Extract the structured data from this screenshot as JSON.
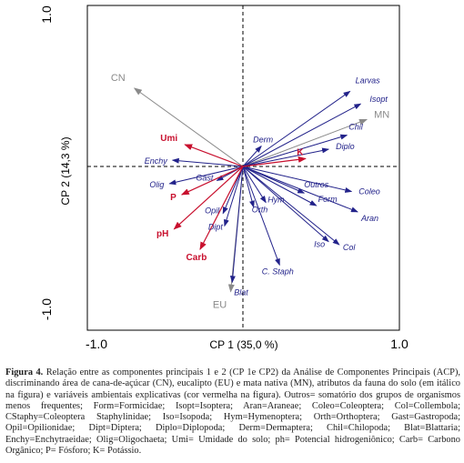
{
  "chart_data": {
    "type": "biplot",
    "xlabel": "CP 1 (35,0 %)",
    "ylabel": "CP 2 (14,3 %)",
    "xlim": [
      -1.0,
      1.0
    ],
    "ylim": [
      -1.0,
      1.0
    ],
    "xticks": [
      "-1.0",
      "1.0"
    ],
    "yticks": [
      "-1.0",
      "1.0"
    ],
    "site_color": "#8a8a8a",
    "fauna_color": "#22228a",
    "env_color": "#c8102e",
    "sites": [
      {
        "name": "CN",
        "x": -0.71,
        "y": 0.5
      },
      {
        "name": "EU",
        "x": -0.08,
        "y": -0.8
      },
      {
        "name": "MN",
        "x": 0.81,
        "y": 0.3
      }
    ],
    "fauna": [
      {
        "name": "Larvas",
        "x": 0.7,
        "y": 0.48
      },
      {
        "name": "Isopt",
        "x": 0.77,
        "y": 0.4
      },
      {
        "name": "Chil",
        "x": 0.68,
        "y": 0.2
      },
      {
        "name": "Diplo",
        "x": 0.56,
        "y": 0.11
      },
      {
        "name": "Derm",
        "x": 0.12,
        "y": 0.13
      },
      {
        "name": "Coleo",
        "x": 0.71,
        "y": -0.16
      },
      {
        "name": "Aran",
        "x": 0.75,
        "y": -0.29
      },
      {
        "name": "Outros",
        "x": 0.4,
        "y": -0.17
      },
      {
        "name": "Form",
        "x": 0.48,
        "y": -0.25
      },
      {
        "name": "Iso",
        "x": 0.56,
        "y": -0.48
      },
      {
        "name": "Col",
        "x": 0.63,
        "y": -0.5
      },
      {
        "name": "Hym",
        "x": 0.15,
        "y": -0.23
      },
      {
        "name": "Orth",
        "x": 0.07,
        "y": -0.26
      },
      {
        "name": "C. Staph",
        "x": 0.24,
        "y": -0.63
      },
      {
        "name": "Blat",
        "x": -0.07,
        "y": -0.74
      },
      {
        "name": "Dipt",
        "x": -0.12,
        "y": -0.38
      },
      {
        "name": "Opil",
        "x": -0.13,
        "y": -0.3
      },
      {
        "name": "Gast",
        "x": -0.17,
        "y": -0.09
      },
      {
        "name": "Olig",
        "x": -0.48,
        "y": -0.11
      },
      {
        "name": "Enchy",
        "x": -0.46,
        "y": 0.04
      }
    ],
    "environment": [
      {
        "name": "Umi",
        "x": -0.38,
        "y": 0.14
      },
      {
        "name": "K",
        "x": 0.41,
        "y": 0.05
      },
      {
        "name": "P",
        "x": -0.4,
        "y": -0.18
      },
      {
        "name": "pH",
        "x": -0.45,
        "y": -0.4
      },
      {
        "name": "Carb",
        "x": -0.28,
        "y": -0.53
      }
    ]
  },
  "caption": {
    "label": "Figura 4.",
    "text": " Relação entre as componentes principais 1 e 2 (CP 1e CP2) da Análise de Componentes Principais (ACP), discriminando área de cana-de-açúcar (CN), eucalipto (EU) e mata nativa (MN), atributos da fauna do solo (em itálico na figura) e variáveis ambientais explicativas (cor vermelha na figura). Outros= somatório dos grupos de organismos menos frequentes; Form=Formicidae; Isopt=Isoptera; Aran=Araneae; Coleo=Coleoptera; Col=Collembola; CStaphy=Coleoptera Staphylinidae; Iso=Isopoda; Hym=Hymenoptera; Orth=Orthoptera; Gast=Gastropoda; Opil=Opilionidae; Dipt=Diptera; Diplo=Diplopoda; Derm=Dermaptera; Chil=Chilopoda; Blat=Blattaria; Enchy=Enchytraeidae; Olig=Oligochaeta; Umi= Umidade do solo; ph= Potencial hidrogeniônico; Carb= Carbono Orgânico; P= Fósforo; K= Potássio."
  }
}
